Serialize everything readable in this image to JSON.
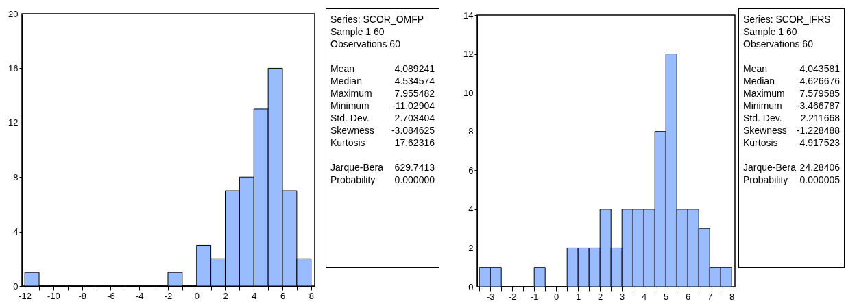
{
  "chart_data": [
    {
      "type": "histogram",
      "bins": [
        -12,
        -11,
        -10,
        -9,
        -8,
        -7,
        -6,
        -5,
        -4,
        -3,
        -2,
        -1,
        0,
        1,
        2,
        3,
        4,
        5,
        6,
        7,
        8
      ],
      "values": [
        1,
        0,
        0,
        0,
        0,
        0,
        0,
        0,
        0,
        0,
        1,
        0,
        3,
        2,
        7,
        8,
        13,
        16,
        7,
        2
      ],
      "color": "#99bbff",
      "xlim": [
        -12.2,
        8.25
      ],
      "ylim": [
        0,
        20
      ],
      "xticks": [
        -12,
        {
          "value": -11,
          "label": null
        },
        -10,
        {
          "value": -9,
          "label": null
        },
        -8,
        {
          "value": -7,
          "label": null
        },
        -6,
        {
          "value": -5,
          "label": null
        },
        -4,
        {
          "value": -3,
          "label": null
        },
        -2,
        {
          "value": -1,
          "label": null
        },
        0,
        {
          "value": 1,
          "label": null
        },
        2,
        {
          "value": 3,
          "label": null
        },
        4,
        {
          "value": 5,
          "label": null
        },
        6,
        {
          "value": 7,
          "label": null
        },
        8
      ],
      "yticks": [
        0,
        4,
        8,
        12,
        16,
        20
      ],
      "grid": false,
      "annotations": [
        "Series: SCOR_OMFP",
        "Sample 1 60",
        "Observations 60",
        "Mean 4.089241",
        "Median 4.534574",
        "Maximum 7.955482",
        "Minimum -11.02904",
        "Std. Dev. 2.703404",
        "Skewness -3.084625",
        "Kurtosis 17.62316",
        "Jarque-Bera 629.7413",
        "Probability 0.000000"
      ]
    },
    {
      "type": "histogram",
      "bins": [
        -3.5,
        -3,
        -2.5,
        -2,
        -1.5,
        -1,
        -0.5,
        0,
        0.5,
        1,
        1.5,
        2,
        2.5,
        3,
        3.5,
        4,
        4.5,
        5,
        5.5,
        6,
        6.5,
        7,
        7.5,
        8
      ],
      "values": [
        1,
        1,
        0,
        0,
        0,
        1,
        0,
        0,
        2,
        2,
        2,
        4,
        2,
        4,
        4,
        4,
        8,
        12,
        4,
        4,
        3,
        1,
        1
      ],
      "color": "#99bbff",
      "xlim": [
        -3.6,
        8.15
      ],
      "ylim": [
        0,
        14
      ],
      "xticks": [
        {
          "value": -3.5,
          "label": null
        },
        -3,
        {
          "value": -2.5,
          "label": null
        },
        -2,
        {
          "value": -1.5,
          "label": null
        },
        -1,
        {
          "value": -0.5,
          "label": null
        },
        0,
        {
          "value": 0.5,
          "label": null
        },
        1,
        {
          "value": 1.5,
          "label": null
        },
        2,
        {
          "value": 2.5,
          "label": null
        },
        3,
        {
          "value": 3.5,
          "label": null
        },
        4,
        {
          "value": 4.5,
          "label": null
        },
        5,
        {
          "value": 5.5,
          "label": null
        },
        6,
        {
          "value": 6.5,
          "label": null
        },
        7,
        {
          "value": 7.5,
          "label": null
        },
        8
      ],
      "yticks": [
        0,
        2,
        4,
        6,
        8,
        10,
        12,
        14
      ],
      "grid": false,
      "annotations": [
        "Series: SCOR_IFRS",
        "Sample 1 60",
        "Observations 60",
        "Mean 4.043581",
        "Median 4.626676",
        "Maximum 7.579585",
        "Minimum -3.466787",
        "Std. Dev. 2.211668",
        "Skewness -1.228488",
        "Kurtosis 4.917523",
        "Jarque-Bera 24.28406",
        "Probability 0.000005"
      ]
    }
  ]
}
